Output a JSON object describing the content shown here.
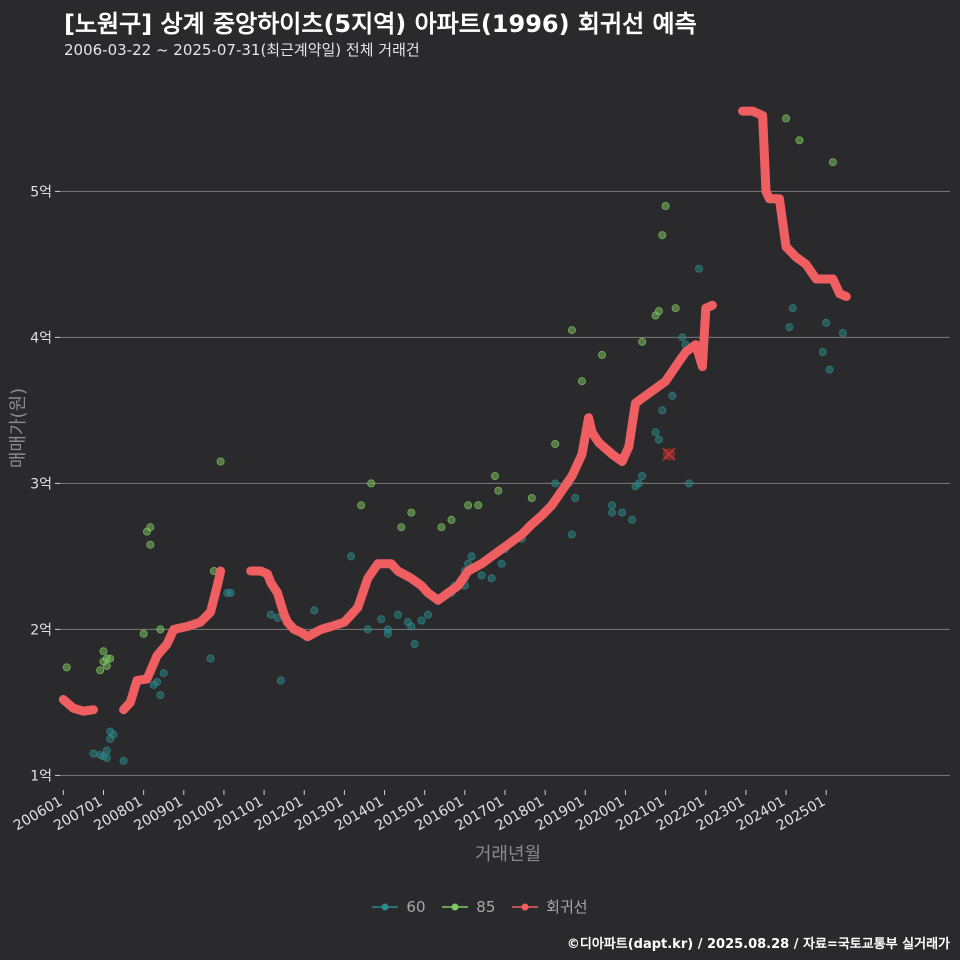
{
  "title": "[노원구] 상계 중앙하이츠(5지역) 아파트(1996) 회귀선 예측",
  "subtitle": "2006-03-22 ~ 2025-07-31(최근계약일) 전체 거래건",
  "footer": "©디아파트(dapt.kr) / 2025.08.28 / 자료=국토교통부 실거래가",
  "colors": {
    "background": "#2a2a2c",
    "grid": "#7a7a7a",
    "area60": "#2a8a8c",
    "area85": "#7ec860",
    "regression": "#ef5f62",
    "text": "#e0e0e0",
    "axis_title": "#8a8a8a"
  },
  "chart_data": {
    "type": "scatter",
    "xlabel": "거래년월",
    "ylabel": "매매가(원)",
    "x_range": [
      "2005-12-01",
      "2028-02-01"
    ],
    "ylim": [
      0.9,
      5.9
    ],
    "y_ticks": [
      {
        "value": 1,
        "label": "1억"
      },
      {
        "value": 2,
        "label": "2억"
      },
      {
        "value": 3,
        "label": "3억"
      },
      {
        "value": 4,
        "label": "4억"
      },
      {
        "value": 5,
        "label": "5억"
      }
    ],
    "x_ticks": [
      "200601",
      "200701",
      "200801",
      "200901",
      "201001",
      "201101",
      "201201",
      "201301",
      "201401",
      "201501",
      "201601",
      "201701",
      "201801",
      "201901",
      "202001",
      "202101",
      "202201",
      "202301",
      "202401",
      "202501"
    ],
    "grid": "horizontal",
    "legend_position": "bottom",
    "legend": [
      {
        "name": "60",
        "color": "#2a8a8c"
      },
      {
        "name": "85",
        "color": "#7ec860"
      },
      {
        "name": "회귀선",
        "color": "#ef5f62"
      }
    ],
    "series": [
      {
        "name": "60",
        "points": [
          [
            "2006-10",
            1.15
          ],
          [
            "2006-12",
            1.14
          ],
          [
            "2007-01",
            1.13
          ],
          [
            "2007-02",
            1.17
          ],
          [
            "2007-02",
            1.12
          ],
          [
            "2007-03",
            1.25
          ],
          [
            "2007-03",
            1.3
          ],
          [
            "2007-04",
            1.28
          ],
          [
            "2007-07",
            1.1
          ],
          [
            "2008-04",
            1.62
          ],
          [
            "2008-05",
            1.64
          ],
          [
            "2008-06",
            1.55
          ],
          [
            "2008-07",
            1.7
          ],
          [
            "2009-09",
            1.8
          ],
          [
            "2010-02",
            2.25
          ],
          [
            "2010-03",
            2.25
          ],
          [
            "2011-03",
            2.1
          ],
          [
            "2011-05",
            2.08
          ],
          [
            "2011-06",
            1.65
          ],
          [
            "2012-04",
            2.13
          ],
          [
            "2013-03",
            2.1
          ],
          [
            "2013-03",
            2.5
          ],
          [
            "2013-08",
            2.0
          ],
          [
            "2013-12",
            2.07
          ],
          [
            "2014-02",
            2.0
          ],
          [
            "2014-02",
            1.97
          ],
          [
            "2014-05",
            2.1
          ],
          [
            "2014-08",
            2.05
          ],
          [
            "2014-09",
            2.02
          ],
          [
            "2014-10",
            1.9
          ],
          [
            "2014-12",
            2.06
          ],
          [
            "2015-02",
            2.1
          ],
          [
            "2015-09",
            2.25
          ],
          [
            "2015-10",
            2.3
          ],
          [
            "2016-01",
            2.3
          ],
          [
            "2016-01",
            2.35
          ],
          [
            "2016-01",
            2.4
          ],
          [
            "2016-02",
            2.45
          ],
          [
            "2016-03",
            2.5
          ],
          [
            "2016-06",
            2.37
          ],
          [
            "2016-09",
            2.35
          ],
          [
            "2016-12",
            2.45
          ],
          [
            "2017-01",
            2.55
          ],
          [
            "2017-05",
            2.63
          ],
          [
            "2017-06",
            2.62
          ],
          [
            "2018-04",
            3.0
          ],
          [
            "2018-08",
            3.0
          ],
          [
            "2018-09",
            2.65
          ],
          [
            "2018-10",
            2.9
          ],
          [
            "2019-09",
            2.85
          ],
          [
            "2019-09",
            2.8
          ],
          [
            "2019-12",
            2.8
          ],
          [
            "2020-03",
            2.75
          ],
          [
            "2020-04",
            2.98
          ],
          [
            "2020-05",
            3.0
          ],
          [
            "2020-06",
            3.05
          ],
          [
            "2020-10",
            3.35
          ],
          [
            "2020-11",
            3.3
          ],
          [
            "2020-12",
            3.5
          ],
          [
            "2021-03",
            3.6
          ],
          [
            "2021-06",
            4.0
          ],
          [
            "2021-07",
            3.95
          ],
          [
            "2021-08",
            3.0
          ],
          [
            "2021-11",
            4.47
          ],
          [
            "2024-02",
            4.07
          ],
          [
            "2024-03",
            4.2
          ],
          [
            "2024-12",
            3.9
          ],
          [
            "2025-01",
            4.1
          ],
          [
            "2025-02",
            3.78
          ],
          [
            "2025-06",
            4.03
          ]
        ]
      },
      {
        "name": "85",
        "points": [
          [
            "2006-02",
            1.74
          ],
          [
            "2006-12",
            1.72
          ],
          [
            "2007-01",
            1.78
          ],
          [
            "2007-01",
            1.85
          ],
          [
            "2007-02",
            1.8
          ],
          [
            "2007-02",
            1.75
          ],
          [
            "2007-03",
            1.8
          ],
          [
            "2008-01",
            1.97
          ],
          [
            "2008-02",
            2.67
          ],
          [
            "2008-03",
            2.7
          ],
          [
            "2008-03",
            2.58
          ],
          [
            "2008-06",
            2.0
          ],
          [
            "2009-10",
            2.4
          ],
          [
            "2009-12",
            3.15
          ],
          [
            "2013-06",
            2.85
          ],
          [
            "2013-09",
            3.0
          ],
          [
            "2014-09",
            2.8
          ],
          [
            "2014-06",
            2.7
          ],
          [
            "2015-06",
            2.7
          ],
          [
            "2015-09",
            2.75
          ],
          [
            "2016-02",
            2.85
          ],
          [
            "2016-05",
            2.85
          ],
          [
            "2016-10",
            3.05
          ],
          [
            "2016-11",
            2.95
          ],
          [
            "2017-09",
            2.9
          ],
          [
            "2018-04",
            3.27
          ],
          [
            "2018-09",
            4.05
          ],
          [
            "2018-12",
            3.7
          ],
          [
            "2019-06",
            3.88
          ],
          [
            "2020-06",
            3.97
          ],
          [
            "2020-10",
            4.15
          ],
          [
            "2020-11",
            4.18
          ],
          [
            "2020-12",
            4.7
          ],
          [
            "2021-01",
            4.9
          ],
          [
            "2021-04",
            4.2
          ],
          [
            "2024-01",
            5.5
          ],
          [
            "2024-05",
            5.35
          ],
          [
            "2025-03",
            5.2
          ]
        ]
      }
    ],
    "regression": [
      [
        "2006-01",
        1.52
      ],
      [
        "2006-04",
        1.46
      ],
      [
        "2006-07",
        1.44
      ],
      [
        "2006-10",
        1.45
      ],
      [
        "2007-07",
        1.45
      ],
      [
        "2007-09",
        1.5
      ],
      [
        "2007-11",
        1.65
      ],
      [
        "2008-02",
        1.66
      ],
      [
        "2008-05",
        1.82
      ],
      [
        "2008-08",
        1.9
      ],
      [
        "2008-10",
        2.0
      ],
      [
        "2009-02",
        2.02
      ],
      [
        "2009-06",
        2.05
      ],
      [
        "2009-09",
        2.12
      ],
      [
        "2009-11",
        2.3
      ],
      [
        "2009-12",
        2.4
      ],
      [
        "2010-09",
        2.4
      ],
      [
        "2010-12",
        2.4
      ],
      [
        "2011-02",
        2.38
      ],
      [
        "2011-03",
        2.32
      ],
      [
        "2011-05",
        2.25
      ],
      [
        "2011-07",
        2.1
      ],
      [
        "2011-08",
        2.05
      ],
      [
        "2011-10",
        2.0
      ],
      [
        "2011-12",
        1.98
      ],
      [
        "2012-02",
        1.95
      ],
      [
        "2012-06",
        2.0
      ],
      [
        "2012-09",
        2.02
      ],
      [
        "2013-01",
        2.05
      ],
      [
        "2013-03",
        2.1
      ],
      [
        "2013-05",
        2.15
      ],
      [
        "2013-08",
        2.35
      ],
      [
        "2013-11",
        2.45
      ],
      [
        "2014-03",
        2.45
      ],
      [
        "2014-05",
        2.4
      ],
      [
        "2014-09",
        2.35
      ],
      [
        "2014-12",
        2.3
      ],
      [
        "2015-02",
        2.25
      ],
      [
        "2015-05",
        2.2
      ],
      [
        "2015-08",
        2.25
      ],
      [
        "2015-11",
        2.3
      ],
      [
        "2016-02",
        2.4
      ],
      [
        "2016-06",
        2.45
      ],
      [
        "2016-09",
        2.5
      ],
      [
        "2016-12",
        2.55
      ],
      [
        "2017-03",
        2.6
      ],
      [
        "2017-06",
        2.65
      ],
      [
        "2017-09",
        2.72
      ],
      [
        "2017-12",
        2.78
      ],
      [
        "2018-03",
        2.85
      ],
      [
        "2018-06",
        2.95
      ],
      [
        "2018-09",
        3.05
      ],
      [
        "2018-12",
        3.2
      ],
      [
        "2019-02",
        3.45
      ],
      [
        "2019-03",
        3.35
      ],
      [
        "2019-05",
        3.28
      ],
      [
        "2019-09",
        3.2
      ],
      [
        "2019-12",
        3.15
      ],
      [
        "2020-02",
        3.25
      ],
      [
        "2020-04",
        3.55
      ],
      [
        "2020-07",
        3.6
      ],
      [
        "2020-10",
        3.65
      ],
      [
        "2021-01",
        3.7
      ],
      [
        "2021-04",
        3.8
      ],
      [
        "2021-07",
        3.9
      ],
      [
        "2021-10",
        3.95
      ],
      [
        "2021-12",
        3.8
      ],
      [
        "2022-01",
        4.2
      ],
      [
        "2022-03",
        4.22
      ],
      [
        "2022-12",
        5.55
      ],
      [
        "2023-03",
        5.55
      ],
      [
        "2023-06",
        5.52
      ],
      [
        "2023-07",
        5.0
      ],
      [
        "2023-08",
        4.95
      ],
      [
        "2023-11",
        4.95
      ],
      [
        "2024-01",
        4.62
      ],
      [
        "2024-04",
        4.55
      ],
      [
        "2024-07",
        4.5
      ],
      [
        "2024-10",
        4.4
      ],
      [
        "2025-03",
        4.4
      ],
      [
        "2025-05",
        4.3
      ],
      [
        "2025-07",
        4.28
      ]
    ],
    "marker": [
      "2021-02",
      3.2
    ]
  }
}
